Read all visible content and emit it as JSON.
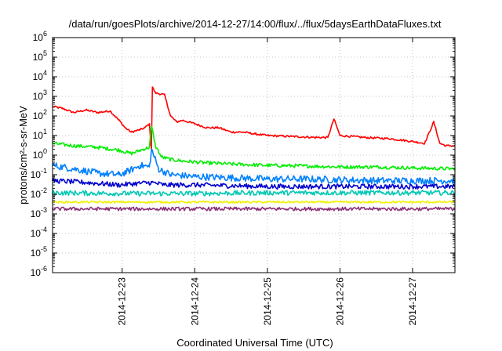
{
  "chart_data": {
    "type": "line",
    "title": "/data/run/goesPlots/archive/2014-12-27/14:00/flux/../flux/5daysEarthDataFluxes.txt",
    "xlabel": "Coordinated Universal Time (UTC)",
    "ylabel": "protons/cm²-s-sr-MeV",
    "y_scale": "log",
    "ylim": [
      1e-06,
      1000000.0
    ],
    "xlim": [
      "2014-12-22 01:00",
      "2014-12-27 14:00"
    ],
    "y_ticks": [
      {
        "value": 1e-06,
        "base": "10",
        "exp": "-6"
      },
      {
        "value": 1e-05,
        "base": "10",
        "exp": "-5"
      },
      {
        "value": 0.0001,
        "base": "10",
        "exp": "-4"
      },
      {
        "value": 0.001,
        "base": "10",
        "exp": "-3"
      },
      {
        "value": 0.01,
        "base": "10",
        "exp": "-2"
      },
      {
        "value": 0.1,
        "base": "10",
        "exp": "-1"
      },
      {
        "value": 1,
        "base": "10",
        "exp": "0"
      },
      {
        "value": 10,
        "base": "10",
        "exp": "1"
      },
      {
        "value": 100,
        "base": "10",
        "exp": "2"
      },
      {
        "value": 1000,
        "base": "10",
        "exp": "3"
      },
      {
        "value": 10000,
        "base": "10",
        "exp": "4"
      },
      {
        "value": 100000,
        "base": "10",
        "exp": "5"
      },
      {
        "value": 1000000,
        "base": "10",
        "exp": "6"
      }
    ],
    "x_ticks": [
      "2014-12-23",
      "2014-12-24",
      "2014-12-25",
      "2014-12-26",
      "2014-12-27"
    ],
    "grid": true,
    "series": [
      {
        "color": "#ff0000",
        "x": [
          "2014-12-22 01:00",
          "2014-12-22 04:00",
          "2014-12-22 08:00",
          "2014-12-22 12:00",
          "2014-12-22 16:00",
          "2014-12-22 20:00",
          "2014-12-22 23:00",
          "2014-12-23 01:00",
          "2014-12-23 03:00",
          "2014-12-23 06:00",
          "2014-12-23 07:30",
          "2014-12-23 09:00",
          "2014-12-23 09:40",
          "2014-12-23 10:00",
          "2014-12-23 11:00",
          "2014-12-23 14:00",
          "2014-12-23 16:00",
          "2014-12-23 18:00",
          "2014-12-23 20:00",
          "2014-12-24 00:00",
          "2014-12-24 04:00",
          "2014-12-24 08:00",
          "2014-12-24 12:00",
          "2014-12-24 16:00",
          "2014-12-24 20:00",
          "2014-12-25 00:00",
          "2014-12-25 08:00",
          "2014-12-25 16:00",
          "2014-12-25 20:00",
          "2014-12-25 22:00",
          "2014-12-26 00:00",
          "2014-12-26 08:00",
          "2014-12-26 16:00",
          "2014-12-27 00:00",
          "2014-12-27 04:00",
          "2014-12-27 07:00",
          "2014-12-27 09:00",
          "2014-12-27 11:00",
          "2014-12-27 14:00"
        ],
        "y": [
          300,
          250,
          150,
          200,
          150,
          180,
          60,
          25,
          15,
          20,
          25,
          40,
          2,
          3000,
          1500,
          1200,
          100,
          50,
          60,
          40,
          25,
          25,
          15,
          15,
          12,
          10,
          9,
          8,
          8,
          70,
          10,
          8,
          7,
          5,
          4,
          50,
          4,
          3,
          3
        ]
      },
      {
        "color": "#00ee00",
        "x": [
          "2014-12-22 01:00",
          "2014-12-22 08:00",
          "2014-12-22 16:00",
          "2014-12-22 23:00",
          "2014-12-23 03:00",
          "2014-12-23 07:00",
          "2014-12-23 09:00",
          "2014-12-23 09:45",
          "2014-12-23 11:00",
          "2014-12-23 13:00",
          "2014-12-23 16:00",
          "2014-12-23 20:00",
          "2014-12-24 04:00",
          "2014-12-24 12:00",
          "2014-12-25 00:00",
          "2014-12-25 12:00",
          "2014-12-26 00:00",
          "2014-12-26 12:00",
          "2014-12-27 00:00",
          "2014-12-27 14:00"
        ],
        "y": [
          4,
          3,
          2.5,
          1.8,
          1.2,
          2,
          2.5,
          30,
          3,
          0.8,
          0.6,
          0.5,
          0.4,
          0.35,
          0.3,
          0.28,
          0.25,
          0.25,
          0.22,
          0.2
        ]
      },
      {
        "color": "#0080ff",
        "x": [
          "2014-12-22 01:00",
          "2014-12-22 08:00",
          "2014-12-22 16:00",
          "2014-12-22 23:00",
          "2014-12-23 02:00",
          "2014-12-23 06:00",
          "2014-12-23 09:00",
          "2014-12-23 09:45",
          "2014-12-23 12:00",
          "2014-12-23 16:00",
          "2014-12-24 00:00",
          "2014-12-24 12:00",
          "2014-12-25 00:00",
          "2014-12-25 12:00",
          "2014-12-26 00:00",
          "2014-12-26 12:00",
          "2014-12-27 00:00",
          "2014-12-27 14:00"
        ],
        "y": [
          0.3,
          0.2,
          0.12,
          0.1,
          0.15,
          0.3,
          0.25,
          2,
          0.2,
          0.1,
          0.08,
          0.07,
          0.06,
          0.06,
          0.055,
          0.05,
          0.05,
          0.05
        ]
      },
      {
        "color": "#0000cc",
        "x": [
          "2014-12-22 01:00",
          "2014-12-22 12:00",
          "2014-12-22 23:00",
          "2014-12-23 04:00",
          "2014-12-23 09:45",
          "2014-12-23 14:00",
          "2014-12-24 00:00",
          "2014-12-25 00:00",
          "2014-12-26 00:00",
          "2014-12-27 00:00",
          "2014-12-27 14:00"
        ],
        "y": [
          0.05,
          0.04,
          0.03,
          0.035,
          0.04,
          0.03,
          0.03,
          0.025,
          0.025,
          0.025,
          0.025
        ]
      },
      {
        "color": "#00c8b4",
        "x": [
          "2014-12-22 01:00",
          "2014-12-23 00:00",
          "2014-12-24 00:00",
          "2014-12-25 00:00",
          "2014-12-26 00:00",
          "2014-12-27 00:00",
          "2014-12-27 14:00"
        ],
        "y": [
          0.012,
          0.011,
          0.011,
          0.012,
          0.012,
          0.012,
          0.012
        ]
      },
      {
        "color": "#f0f000",
        "x": [
          "2014-12-22 01:00",
          "2014-12-23 00:00",
          "2014-12-24 00:00",
          "2014-12-25 00:00",
          "2014-12-26 00:00",
          "2014-12-27 00:00",
          "2014-12-27 14:00"
        ],
        "y": [
          0.004,
          0.004,
          0.004,
          0.004,
          0.004,
          0.004,
          0.004
        ]
      },
      {
        "color": "#8c3278",
        "x": [
          "2014-12-22 01:00",
          "2014-12-23 00:00",
          "2014-12-24 00:00",
          "2014-12-25 00:00",
          "2014-12-26 00:00",
          "2014-12-27 00:00",
          "2014-12-27 14:00"
        ],
        "y": [
          0.0018,
          0.0018,
          0.0018,
          0.0018,
          0.0018,
          0.0018,
          0.0018
        ]
      }
    ]
  }
}
